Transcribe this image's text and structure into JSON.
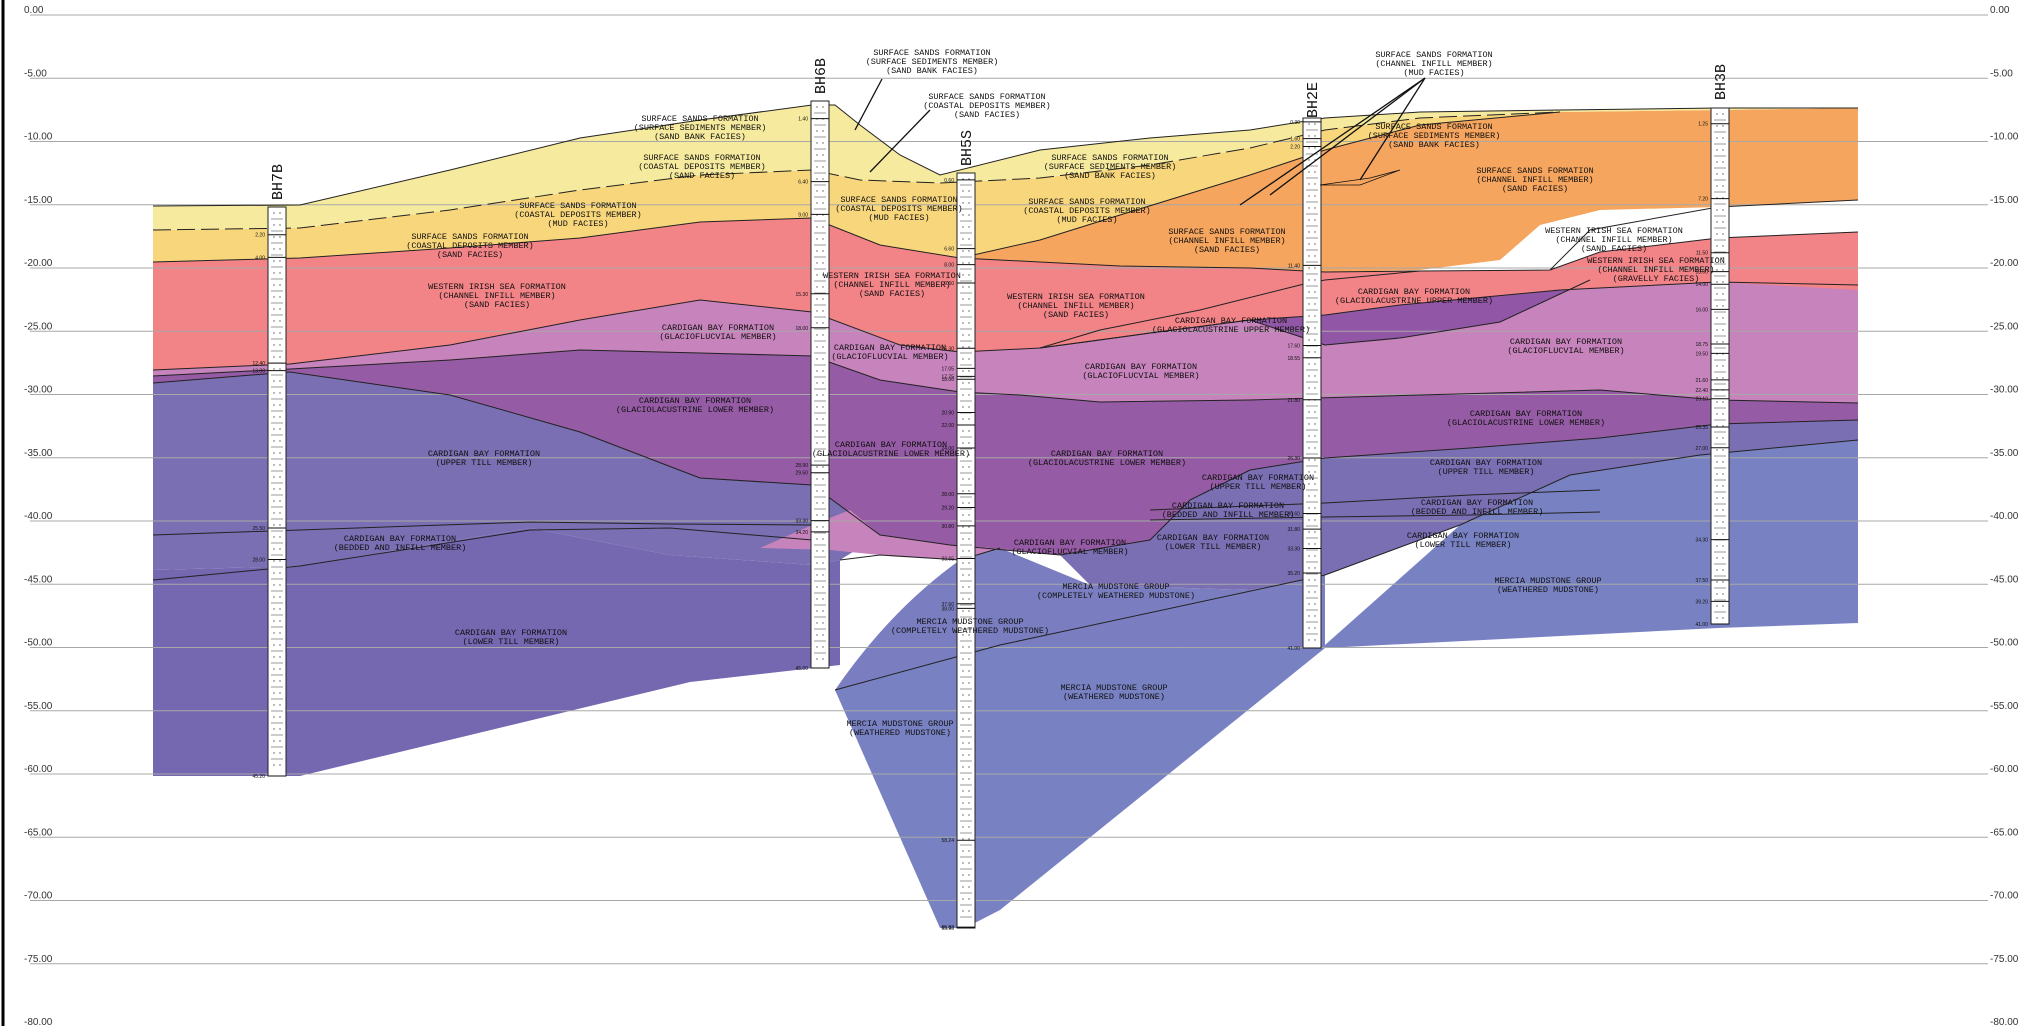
{
  "elevation_axis": {
    "labels": [
      "0.00",
      "-5.00",
      "-10.00",
      "-15.00",
      "-20.00",
      "-25.00",
      "-30.00",
      "-35.00",
      "-40.00",
      "-45.00",
      "-50.00",
      "-55.00",
      "-60.00",
      "-65.00",
      "-70.00",
      "-75.00",
      "-80.00"
    ]
  },
  "boreholes": [
    {
      "id": "BH7B",
      "depths": [
        "2.20",
        "4.00",
        "12.40",
        "13.00",
        "25.50",
        "28.00",
        "45.20"
      ]
    },
    {
      "id": "BH6B",
      "depths": [
        "1.40",
        "6.40",
        "9.00",
        "15.30",
        "18.00",
        "28.90",
        "29.50",
        "33.30",
        "34.20",
        "45.00"
      ]
    },
    {
      "id": "BH5S",
      "depths": [
        "0.60",
        "6.60",
        "8.00",
        "9.60",
        "15.30",
        "17.05",
        "17.75",
        "18.00",
        "20.90",
        "22.00",
        "24.00",
        "28.00",
        "29.20",
        "30.80",
        "33.65",
        "37.60",
        "38.00",
        "58.24",
        "65.82",
        "65.90"
      ]
    },
    {
      "id": "BH2E",
      "depths": [
        "0.30",
        "1.60",
        "2.20",
        "11.40",
        "17.60",
        "18.55",
        "21.80",
        "26.30",
        "30.60",
        "31.80",
        "33.30",
        "35.20",
        "41.00"
      ]
    },
    {
      "id": "BH3B",
      "depths": [
        "1.25",
        "7.20",
        "11.50",
        "13.00",
        "14.00",
        "16.00",
        "18.75",
        "19.50",
        "21.60",
        "22.40",
        "23.10",
        "25.35",
        "27.00",
        "34.30",
        "37.50",
        "39.20",
        "41.00"
      ]
    }
  ],
  "units": [
    {
      "label": [
        "SURFACE SANDS FORMATION",
        "(SURFACE SEDIMENTS MEMBER)",
        "(SAND BANK FACIES)"
      ]
    },
    {
      "label": [
        "SURFACE SANDS FORMATION",
        "(COASTAL DEPOSITS MEMBER)",
        "(SAND FACIES)"
      ]
    },
    {
      "label": [
        "SURFACE SANDS FORMATION",
        "(COASTAL DEPOSITS MEMBER)",
        "(MUD FACIES)"
      ]
    },
    {
      "label": [
        "SURFACE SANDS FORMATION",
        "(COASTAL DEPOSITS MEMBER)",
        "(SAND FACIES)"
      ]
    },
    {
      "label": [
        "WESTERN IRISH SEA FORMATION",
        "(CHANNEL INFILL MEMBER)",
        "(SAND FACIES)"
      ]
    },
    {
      "label": [
        "CARDIGAN BAY FORMATION",
        "(GLACIOFLUCVIAL MEMBER)"
      ]
    },
    {
      "label": [
        "CARDIGAN BAY FORMATION",
        "(GLACIOLACUSTRINE LOWER MEMBER)"
      ]
    },
    {
      "label": [
        "CARDIGAN BAY FORMATION",
        "(UPPER TILL MEMBER)"
      ]
    },
    {
      "label": [
        "CARDIGAN BAY FORMATION",
        "(BEDDED AND INFILL MEMBER)"
      ]
    },
    {
      "label": [
        "CARDIGAN BAY FORMATION",
        "(LOWER TILL MEMBER)"
      ]
    },
    {
      "label": [
        "SURFACE SANDS FORMATION",
        "(COASTAL DEPOSITS MEMBER)",
        "(MUD FACIES)"
      ]
    },
    {
      "label": [
        "WESTERN IRISH SEA FORMATION",
        "(CHANNEL INFILL MEMBER)",
        "(SAND FACIES)"
      ]
    },
    {
      "label": [
        "CARDIGAN BAY FORMATION",
        "(GLACIOFLUCVIAL MEMBER)"
      ]
    },
    {
      "label": [
        "CARDIGAN BAY FORMATION",
        "(GLACIOLACUSTRINE LOWER MEMBER)"
      ]
    },
    {
      "label": [
        "MERCIA MUDSTONE GROUP",
        "(COMPLETELY WEATHERED MUDSTONE)"
      ]
    },
    {
      "label": [
        "MERCIA MUDSTONE GROUP",
        "(WEATHERED MUDSTONE)"
      ]
    },
    {
      "label": [
        "SURFACE SANDS FORMATION",
        "(SURFACE SEDIMENTS MEMBER)",
        "(SAND BANK FACIES)"
      ]
    },
    {
      "label": [
        "SURFACE SANDS FORMATION",
        "(COASTAL DEPOSITS MEMBER)",
        "(MUD FACIES)"
      ]
    },
    {
      "label": [
        "WESTERN IRISH SEA FORMATION",
        "(CHANNEL INFILL MEMBER)",
        "(SAND FACIES)"
      ]
    },
    {
      "label": [
        "CARDIGAN BAY FORMATION",
        "(GLACIOFLUCVIAL MEMBER)"
      ]
    },
    {
      "label": [
        "CARDIGAN BAY FORMATION",
        "(GLACIOLACUSTRINE LOWER MEMBER)"
      ]
    },
    {
      "label": [
        "CARDIGAN BAY FORMATION",
        "(GLACIOFLUCVIAL MEMBER)"
      ]
    },
    {
      "label": [
        "MERCIA MUDSTONE GROUP",
        "(COMPLETELY WEATHERED MUDSTONE)"
      ]
    },
    {
      "label": [
        "MERCIA MUDSTONE GROUP",
        "(WEATHERED MUDSTONE)"
      ]
    },
    {
      "label": [
        "SURFACE SANDS FORMATION",
        "(CHANNEL INFILL MEMBER)",
        "(SAND FACIES)"
      ]
    },
    {
      "label": [
        "CARDIGAN BAY FORMATION",
        "(GLACIOLACUSTRINE UPPER MEMBER)"
      ]
    },
    {
      "label": [
        "CARDIGAN BAY FORMATION",
        "(UPPER TILL MEMBER)"
      ]
    },
    {
      "label": [
        "CARDIGAN BAY FORMATION",
        "(BEDDED AND INFILL MEMBER)"
      ]
    },
    {
      "label": [
        "CARDIGAN BAY FORMATION",
        "(LOWER TILL MEMBER)"
      ]
    },
    {
      "label": [
        "SURFACE SANDS FORMATION",
        "(SURFACE SEDIMENTS MEMBER)",
        "(SAND BANK FACIES)"
      ]
    },
    {
      "label": [
        "SURFACE SANDS FORMATION",
        "(CHANNEL INFILL MEMBER)",
        "(SAND FACIES)"
      ]
    },
    {
      "label": [
        "CARDIGAN BAY FORMATION",
        "(GLACIOLACUSTRINE UPPER MEMBER)"
      ]
    },
    {
      "label": [
        "WESTERN IRISH SEA FORMATION",
        "(CHANNEL INFILL MEMBER)",
        "(SAND FACIES)"
      ]
    },
    {
      "label": [
        "WESTERN IRISH SEA FORMATION",
        "(CHANNEL INFILL MEMBER)",
        "(GRAVELLY FACIES)"
      ]
    },
    {
      "label": [
        "CARDIGAN BAY FORMATION",
        "(GLACIOFLUCVIAL MEMBER)"
      ]
    },
    {
      "label": [
        "CARDIGAN BAY FORMATION",
        "(GLACIOLACUSTRINE LOWER MEMBER)"
      ]
    },
    {
      "label": [
        "CARDIGAN BAY FORMATION",
        "(UPPER TILL MEMBER)"
      ]
    },
    {
      "label": [
        "CARDIGAN BAY FORMATION",
        "(BEDDED AND INFILL MEMBER)"
      ]
    },
    {
      "label": [
        "CARDIGAN BAY FORMATION",
        "(LOWER TILL MEMBER)"
      ]
    },
    {
      "label": [
        "MERCIA MUDSTONE GROUP",
        "(WEATHERED MUDSTONE)"
      ]
    }
  ],
  "callouts": [
    {
      "label": [
        "SURFACE SANDS FORMATION",
        "(SURFACE SEDIMENTS MEMBER)",
        "(SAND BANK FACIES)"
      ]
    },
    {
      "label": [
        "SURFACE SANDS FORMATION",
        "(COASTAL DEPOSITS MEMBER)",
        "(SAND FACIES)"
      ]
    },
    {
      "label": [
        "SURFACE SANDS FORMATION",
        "(CHANNEL INFILL MEMBER)",
        "(MUD FACIES)"
      ]
    }
  ],
  "colors": {
    "sand_bank": "#F6EA9E",
    "coastal_sand": "#F8D67C",
    "coastal_mud": "#F8D67C",
    "channel_infill_sand": "#F5A55E",
    "western_irish_sea": "#F28387",
    "glaciofluvial": "#C783BC",
    "glaciolacustrine_upper": "#9157A6",
    "glaciolacustrine_lower": "#955BA4",
    "upper_till": "#7A6FB3",
    "lower_till": "#7567B0",
    "mercia_completely": "#7A7EC0",
    "mercia_weathered": "#7882C2",
    "grid": "#A8A8A8"
  }
}
